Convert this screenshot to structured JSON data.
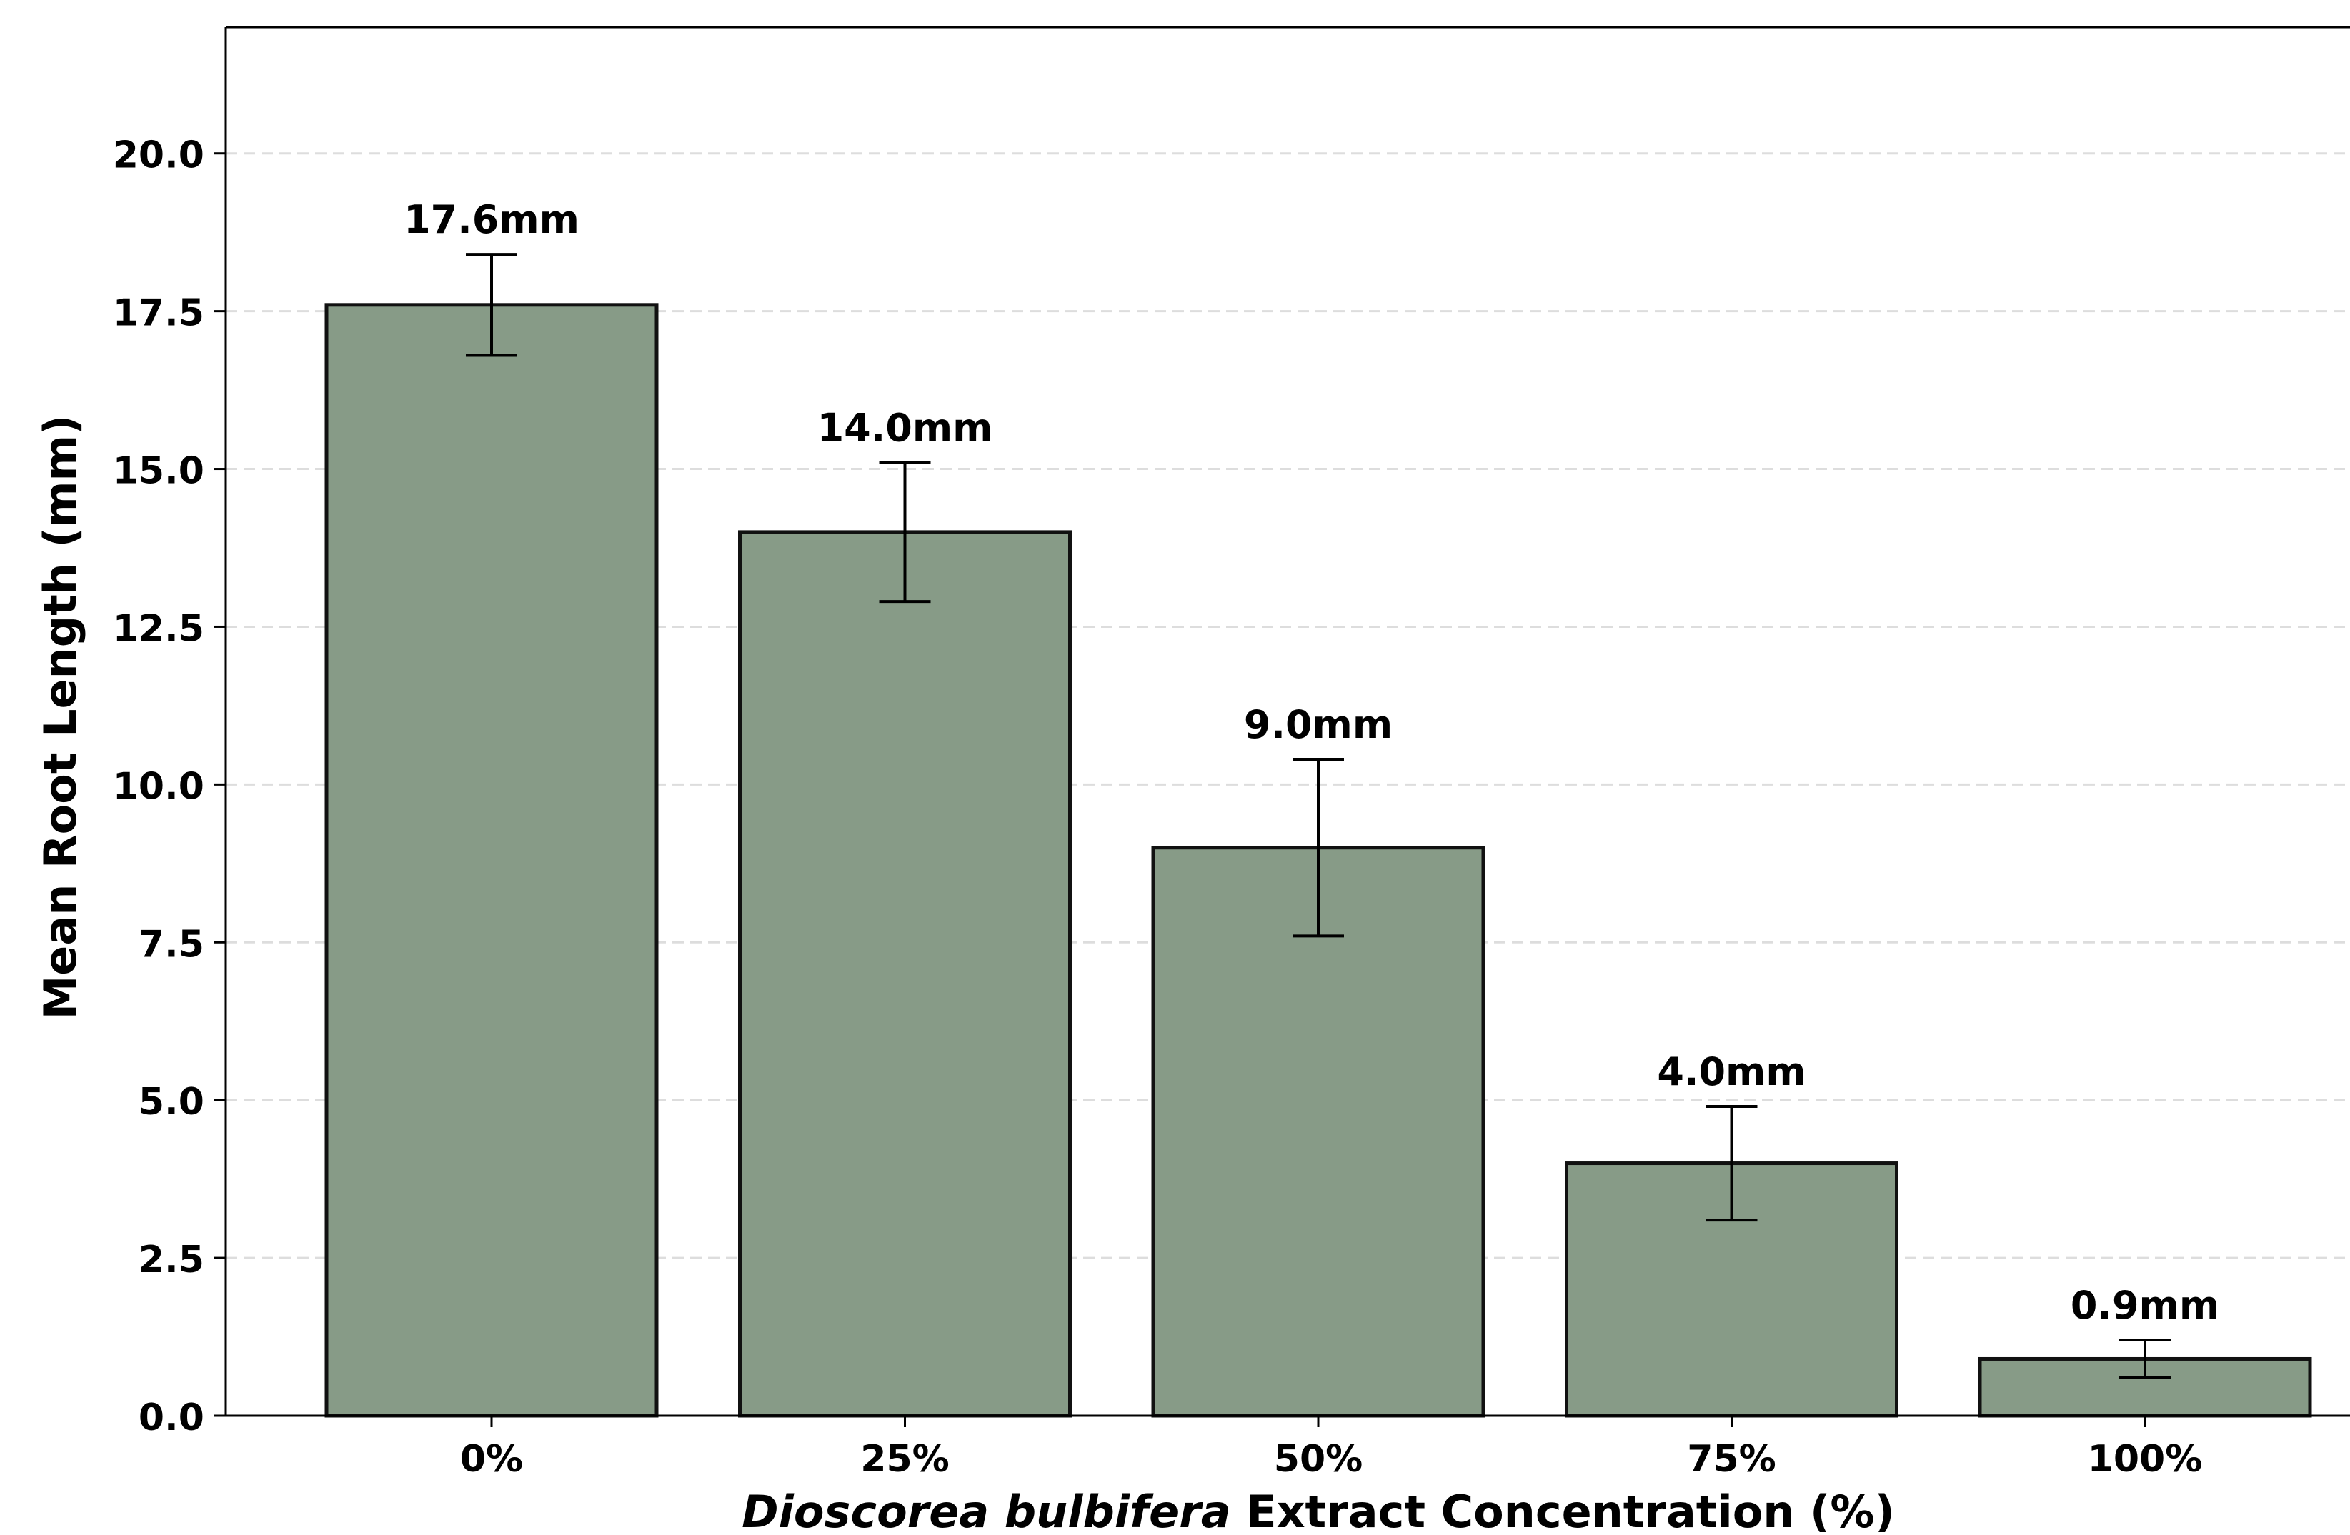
{
  "chart_data": {
    "type": "bar",
    "categories": [
      "0%",
      "25%",
      "50%",
      "75%",
      "100%"
    ],
    "values": [
      17.6,
      14.0,
      9.0,
      4.0,
      0.9
    ],
    "errors": [
      0.8,
      1.1,
      1.4,
      0.9,
      0.3
    ],
    "data_labels": [
      "17.6mm",
      "14.0mm",
      "9.0mm",
      "4.0mm",
      "0.9mm"
    ],
    "title": "",
    "xlabel_italic": "Dioscorea bulbifera",
    "xlabel_rest": " Extract Concentration (%)",
    "ylabel": "Mean Root Length (mm)",
    "ylim": [
      0,
      22
    ],
    "yticks": [
      0.0,
      2.5,
      5.0,
      7.5,
      10.0,
      12.5,
      15.0,
      17.5,
      20.0
    ],
    "ytick_labels": [
      "0.0",
      "2.5",
      "5.0",
      "7.5",
      "10.0",
      "12.5",
      "15.0",
      "17.5",
      "20.0"
    ],
    "grid": "horizontal dashed",
    "legend": "none"
  },
  "colors": {
    "bar_fill": "#879b87",
    "bar_edge": "#111111",
    "grid": "#dddddd",
    "axis": "#000000",
    "text": "#000000"
  }
}
